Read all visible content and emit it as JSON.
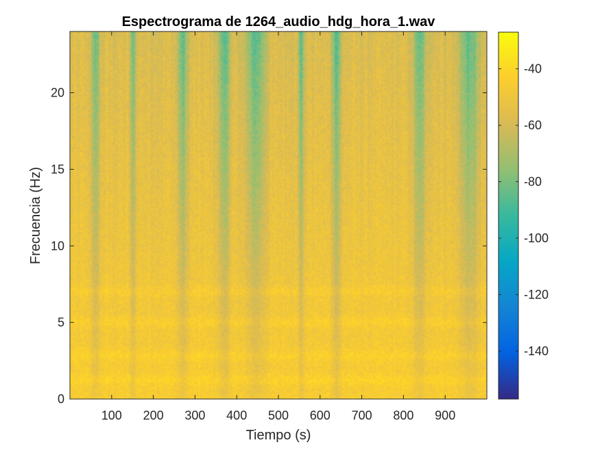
{
  "chart_data": {
    "type": "heatmap",
    "title": "Espectrograma de 1264_audio_hdg_hora_1.wav",
    "xlabel": "Tiempo (s)",
    "ylabel": "Frecuencia (Hz)",
    "xlim": [
      0,
      1000
    ],
    "ylim": [
      0,
      24
    ],
    "xticks": [
      100,
      200,
      300,
      400,
      500,
      600,
      700,
      800,
      900
    ],
    "yticks": [
      0,
      5,
      10,
      15,
      20
    ],
    "colorbar": {
      "ticks": [
        -40,
        -60,
        -80,
        -100,
        -120,
        -140
      ],
      "range": [
        -157,
        -27
      ],
      "colormap": "parula",
      "colormap_stops": [
        "#352a87",
        "#0363e1",
        "#1485d4",
        "#06a7c6",
        "#38b99e",
        "#92bf73",
        "#d9ba56",
        "#fcce2e",
        "#f9fb0e"
      ]
    },
    "background_level_db": -50,
    "low_freq_bands_hz": [
      1.2,
      2.8,
      5.0,
      7.0
    ],
    "quiet_time_bands_s": [
      {
        "center": 60,
        "width": 15
      },
      {
        "center": 150,
        "width": 10
      },
      {
        "center": 270,
        "width": 20
      },
      {
        "center": 370,
        "width": 25
      },
      {
        "center": 445,
        "width": 40
      },
      {
        "center": 555,
        "width": 12
      },
      {
        "center": 640,
        "width": 18
      },
      {
        "center": 840,
        "width": 25
      },
      {
        "center": 960,
        "width": 40
      }
    ]
  }
}
